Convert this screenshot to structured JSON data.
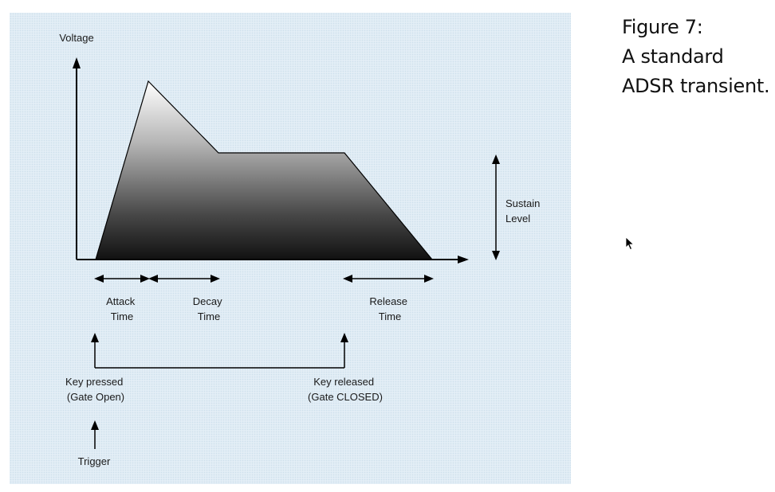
{
  "diagram": {
    "y_axis_label": "Voltage",
    "sustain_label": [
      "Sustain",
      "Level"
    ],
    "attack_label": [
      "Attack",
      "Time"
    ],
    "decay_label": [
      "Decay",
      "Time"
    ],
    "release_label": [
      "Release",
      "Time"
    ],
    "key_pressed_label": [
      "Key pressed",
      "(Gate Open)"
    ],
    "key_released_label": [
      "Key released",
      "(Gate CLOSED)"
    ],
    "trigger_label": "Trigger"
  },
  "caption": {
    "line1": "Figure 7:",
    "line2": "A standard",
    "line3": "ADSR transient."
  },
  "colors": {
    "panel_background": "#e3eef6",
    "envelope_top": "#ffffff",
    "envelope_bottom": "#111111",
    "line": "#000000"
  }
}
